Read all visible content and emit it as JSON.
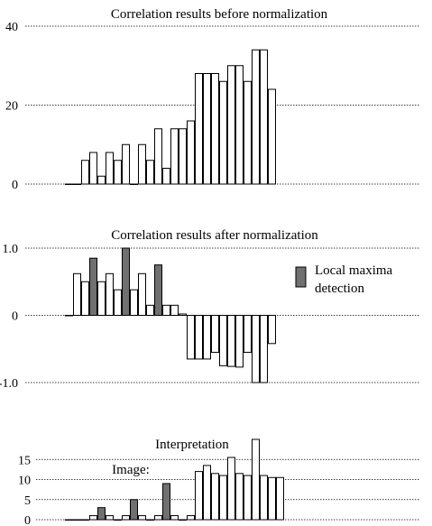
{
  "chart_data": [
    {
      "type": "bar",
      "title": "Correlation results before normalization",
      "ylim": [
        0,
        40
      ],
      "yticks": [
        0,
        20,
        40
      ],
      "grid": true,
      "values": [
        0,
        0,
        6,
        8,
        2,
        8,
        6,
        10,
        0,
        10,
        6,
        14,
        4,
        14,
        14,
        16,
        28,
        28,
        28,
        26,
        30,
        30,
        26,
        34,
        34,
        24
      ],
      "highlight": [
        false,
        false,
        false,
        false,
        false,
        false,
        false,
        false,
        true,
        false,
        false,
        false,
        false,
        false,
        false,
        false,
        false,
        false,
        false,
        false,
        false,
        false,
        false,
        false,
        false,
        false
      ]
    },
    {
      "type": "bar",
      "title": "Correlation results after normalization",
      "ylim": [
        -1.0,
        1.0
      ],
      "yticks": [
        1.0,
        0,
        -1.0
      ],
      "ytick_labels": [
        "1.0",
        "0",
        "-1.0"
      ],
      "grid": true,
      "values": [
        0,
        0.62,
        0.5,
        0.85,
        0.5,
        0.62,
        0.38,
        1.0,
        0.38,
        0.62,
        0.15,
        0.75,
        0.15,
        0.15,
        0.02,
        -0.65,
        -0.65,
        -0.65,
        -0.55,
        -0.75,
        -0.76,
        -0.77,
        -0.55,
        -1.0,
        -1.0,
        -0.42
      ],
      "highlight": [
        false,
        false,
        false,
        true,
        false,
        false,
        false,
        true,
        false,
        false,
        false,
        true,
        false,
        false,
        false,
        false,
        false,
        false,
        false,
        false,
        false,
        false,
        false,
        false,
        false,
        false
      ],
      "legend": {
        "label_lines": [
          "Local maxima",
          "detection"
        ],
        "position": "right",
        "color": "#707070"
      }
    },
    {
      "type": "bar",
      "ylim": [
        0,
        20
      ],
      "yticks": [
        0,
        5,
        10,
        15
      ],
      "grid": true,
      "annotations": [
        "Interpretation",
        "Image:"
      ],
      "values": [
        0,
        0,
        0,
        1,
        3,
        1,
        0,
        1,
        5,
        1,
        0,
        1,
        9,
        1,
        0,
        1,
        12,
        13.5,
        11.5,
        11,
        15.5,
        11.5,
        11,
        20,
        11,
        10.5,
        10.5
      ],
      "highlight": [
        false,
        false,
        false,
        false,
        true,
        false,
        false,
        false,
        true,
        false,
        false,
        false,
        true,
        false,
        false,
        false,
        false,
        false,
        false,
        false,
        false,
        false,
        false,
        false,
        false,
        false,
        false
      ]
    }
  ],
  "colors": {
    "bar_fill": "#ffffff",
    "bar_highlight": "#707070",
    "bar_stroke": "#000000"
  }
}
